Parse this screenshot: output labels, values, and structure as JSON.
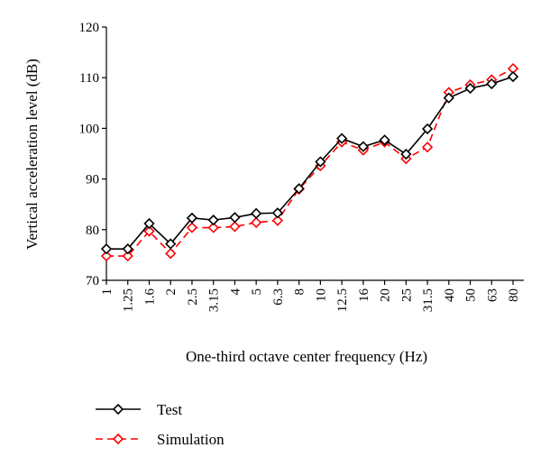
{
  "chart_data": {
    "type": "line",
    "title": "",
    "xlabel": "One-third octave center frequency (Hz)",
    "ylabel": "Vertical acceleration level (dB)",
    "categories": [
      "1",
      "1.25",
      "1.6",
      "2",
      "2.5",
      "3.15",
      "4",
      "5",
      "6.3",
      "8",
      "10",
      "12.5",
      "16",
      "20",
      "25",
      "31.5",
      "40",
      "50",
      "63",
      "80"
    ],
    "ylim": [
      70,
      120
    ],
    "yticks": [
      "70",
      "80",
      "90",
      "100",
      "110",
      "120"
    ],
    "grid": false,
    "legend_position": "bottom-left",
    "series": [
      {
        "name": "Test",
        "color": "#000000",
        "line_style": "solid",
        "marker": "diamond",
        "values": [
          76.2,
          76.2,
          81.2,
          77.2,
          82.3,
          81.9,
          82.4,
          83.2,
          83.3,
          88.1,
          93.4,
          98.0,
          96.4,
          97.7,
          94.9,
          99.9,
          106.0,
          107.9,
          108.8,
          110.2
        ]
      },
      {
        "name": "Simulation",
        "color": "#ff0000",
        "line_style": "dashed",
        "marker": "diamond",
        "values": [
          74.8,
          74.8,
          79.7,
          75.3,
          80.4,
          80.4,
          80.6,
          81.4,
          81.8,
          88.0,
          92.6,
          97.3,
          95.7,
          97.3,
          94.0,
          96.3,
          107.1,
          108.6,
          109.6,
          111.8
        ]
      }
    ]
  }
}
